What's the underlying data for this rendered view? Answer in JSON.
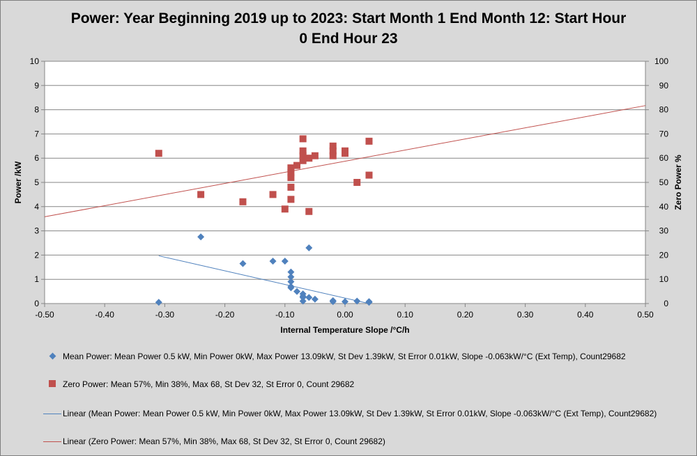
{
  "chart_data": {
    "type": "scatter",
    "title": "Power: Year Beginning 2019 up to 2023: Start Month 1 End Month 12: Start Hour 0 End Hour 23",
    "xlabel": "Internal Temperature Slope /°C/h",
    "ylabel": "Power /kW",
    "y2label": "Zero Power %",
    "xlim": [
      -0.5,
      0.5
    ],
    "ylim": [
      0,
      10
    ],
    "y2lim": [
      0,
      100
    ],
    "x_ticks": [
      "-0.50",
      "-0.40",
      "-0.30",
      "-0.20",
      "-0.10",
      "0.00",
      "0.10",
      "0.20",
      "0.30",
      "0.40",
      "0.50"
    ],
    "y_ticks": [
      "0",
      "1",
      "2",
      "3",
      "4",
      "5",
      "6",
      "7",
      "8",
      "9",
      "10"
    ],
    "y2_ticks": [
      "0",
      "10",
      "20",
      "30",
      "40",
      "50",
      "60",
      "70",
      "80",
      "90",
      "100"
    ],
    "grid": true,
    "legend_position": "bottom",
    "series": [
      {
        "name": "Mean Power: Mean Power 0.5 kW,  Min Power 0kW,  Max Power 13.09kW,  St Dev 1.39kW,  St Error 0.01kW, Slope -0.063kW/°C (Ext Temp), Count29682",
        "axis": "left",
        "marker": "diamond",
        "color": "#4f81bd",
        "points": [
          [
            -0.31,
            0.05
          ],
          [
            -0.24,
            2.75
          ],
          [
            -0.17,
            1.65
          ],
          [
            -0.12,
            1.75
          ],
          [
            -0.1,
            1.75
          ],
          [
            -0.09,
            1.3
          ],
          [
            -0.09,
            1.1
          ],
          [
            -0.09,
            0.9
          ],
          [
            -0.09,
            0.7
          ],
          [
            -0.09,
            0.65
          ],
          [
            -0.08,
            0.5
          ],
          [
            -0.07,
            0.4
          ],
          [
            -0.07,
            0.3
          ],
          [
            -0.07,
            0.25
          ],
          [
            -0.07,
            0.1
          ],
          [
            -0.06,
            2.3
          ],
          [
            -0.06,
            0.25
          ],
          [
            -0.05,
            0.18
          ],
          [
            -0.02,
            0.12
          ],
          [
            -0.02,
            0.08
          ],
          [
            0.0,
            0.08
          ],
          [
            0.02,
            0.1
          ],
          [
            0.04,
            0.08
          ],
          [
            0.04,
            0.05
          ]
        ]
      },
      {
        "name": "Zero Power:  Mean 57%, Min 38%, Max 68, St Dev 32, St Error 0, Count 29682",
        "axis": "right",
        "marker": "square",
        "color": "#c0504d",
        "points": [
          [
            -0.31,
            62
          ],
          [
            -0.24,
            45
          ],
          [
            -0.17,
            42
          ],
          [
            -0.12,
            45
          ],
          [
            -0.1,
            39
          ],
          [
            -0.09,
            56
          ],
          [
            -0.09,
            54
          ],
          [
            -0.09,
            52
          ],
          [
            -0.09,
            48
          ],
          [
            -0.09,
            43
          ],
          [
            -0.08,
            57
          ],
          [
            -0.07,
            68
          ],
          [
            -0.07,
            63
          ],
          [
            -0.07,
            61
          ],
          [
            -0.07,
            59
          ],
          [
            -0.06,
            60
          ],
          [
            -0.06,
            38
          ],
          [
            -0.05,
            61
          ],
          [
            -0.02,
            65
          ],
          [
            -0.02,
            63
          ],
          [
            -0.02,
            61
          ],
          [
            0.0,
            63
          ],
          [
            0.0,
            62
          ],
          [
            0.02,
            50
          ],
          [
            0.04,
            67
          ],
          [
            0.04,
            53
          ]
        ]
      },
      {
        "name": "Linear (Mean Power: Mean Power 0.5 kW,  Min Power 0kW,  Max Power 13.09kW,  St Dev 1.39kW,  St Error 0.01kW, Slope -0.063kW/°C (Ext Temp), Count29682)",
        "axis": "left",
        "type": "trendline",
        "color": "#4f81bd",
        "points": [
          [
            -0.31,
            1.97
          ],
          [
            0.04,
            0.0
          ]
        ]
      },
      {
        "name": "Linear (Zero Power:  Mean 57%, Min 38%, Max 68, St Dev 32, St Error 0, Count 29682)",
        "axis": "right",
        "type": "trendline",
        "color": "#c0504d",
        "points": [
          [
            -0.5,
            35.8
          ],
          [
            0.5,
            81.7
          ]
        ]
      }
    ]
  }
}
